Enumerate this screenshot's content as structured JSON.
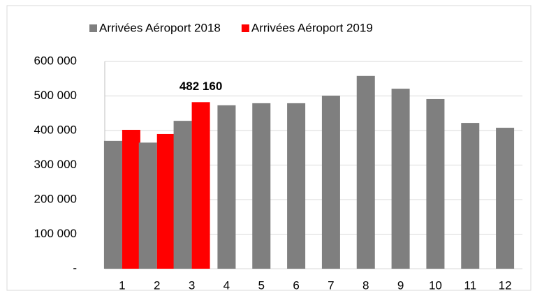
{
  "chart_data": {
    "type": "bar",
    "categories": [
      "1",
      "2",
      "3",
      "4",
      "5",
      "6",
      "7",
      "8",
      "9",
      "10",
      "11",
      "12"
    ],
    "series": [
      {
        "name": "Arrivées Aéroport 2018",
        "color": "#7f7f7f",
        "values": [
          370000,
          365000,
          428000,
          473000,
          479000,
          479000,
          501000,
          558000,
          521000,
          491000,
          422000,
          408000
        ]
      },
      {
        "name": "Arrivées Aéroport 2019",
        "color": "#ff0000",
        "values": [
          402000,
          390000,
          482160,
          null,
          null,
          null,
          null,
          null,
          null,
          null,
          null,
          null
        ],
        "value_labels": [
          null,
          null,
          "482 160",
          null,
          null,
          null,
          null,
          null,
          null,
          null,
          null,
          null
        ]
      }
    ],
    "ylim": [
      0,
      600000
    ],
    "yticks": [
      {
        "value": 0,
        "label": "-"
      },
      {
        "value": 100000,
        "label": "100 000"
      },
      {
        "value": 200000,
        "label": "200 000"
      },
      {
        "value": 300000,
        "label": "300 000"
      },
      {
        "value": 400000,
        "label": "400 000"
      },
      {
        "value": 500000,
        "label": "500 000"
      },
      {
        "value": 600000,
        "label": "600 000"
      }
    ],
    "grid": true,
    "legend": "top"
  }
}
